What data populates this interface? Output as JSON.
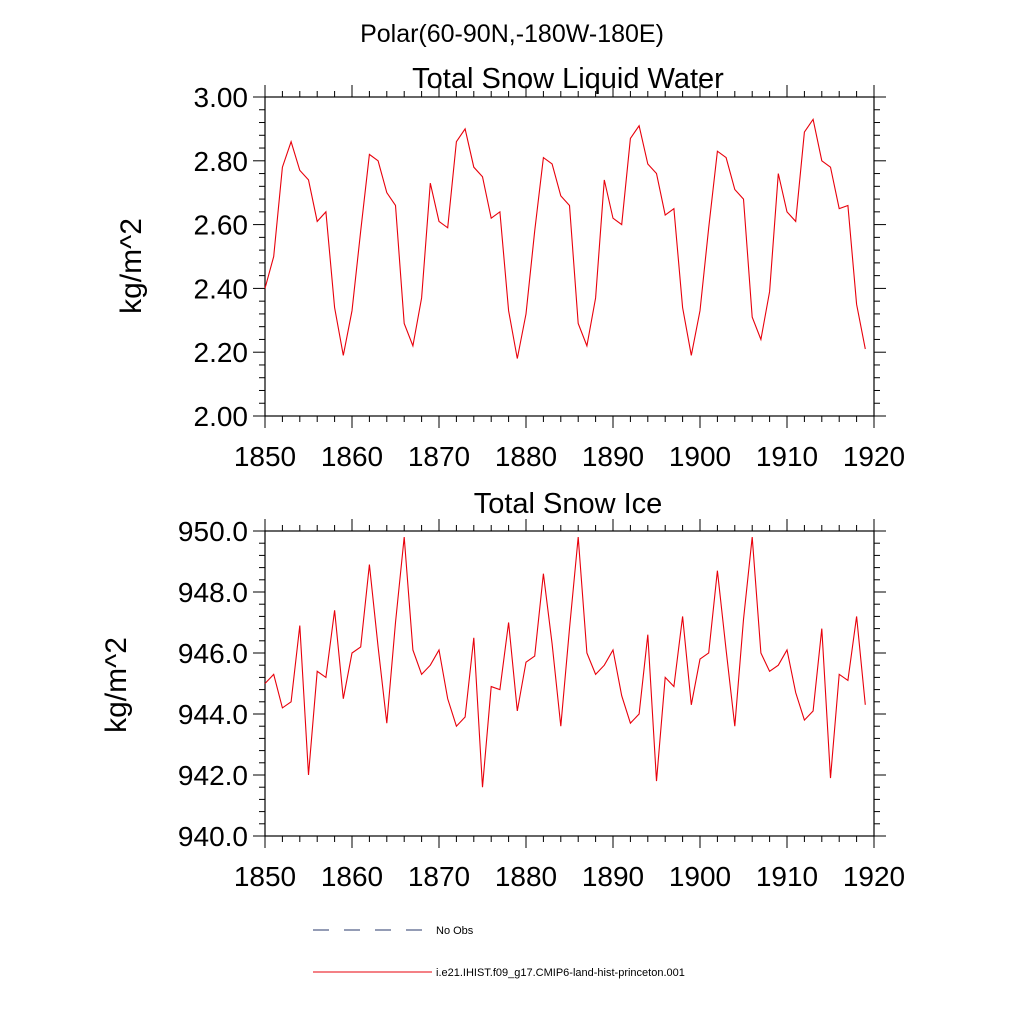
{
  "page_title": "Polar(60-90N,-180W-180E)",
  "legend": {
    "items": [
      {
        "label": "No Obs",
        "color": "#2a3a6b",
        "style": "dashed"
      },
      {
        "label": "i.e21.IHIST.f09_g17.CMIP6-land-hist-princeton.001",
        "color": "#e8000b",
        "style": "solid"
      }
    ]
  },
  "chart_data": [
    {
      "type": "line",
      "title": "Total Snow Liquid Water",
      "ylabel": "kg/m^2",
      "xlabel": "",
      "xlim": [
        1850,
        1920
      ],
      "ylim": [
        2.0,
        3.0
      ],
      "x_ticks": [
        1850,
        1860,
        1870,
        1880,
        1890,
        1900,
        1910,
        1920
      ],
      "y_ticks": [
        2.0,
        2.2,
        2.4,
        2.6,
        2.8,
        3.0
      ],
      "y_tick_labels": [
        "2.00",
        "2.20",
        "2.40",
        "2.60",
        "2.80",
        "3.00"
      ],
      "x_tick_labels": [
        "1850",
        "1860",
        "1870",
        "1880",
        "1890",
        "1900",
        "1910",
        "1920"
      ],
      "series": [
        {
          "name": "i.e21.IHIST.f09_g17.CMIP6-land-hist-princeton.001",
          "color": "#e8000b",
          "x": [
            1850,
            1851,
            1852,
            1853,
            1854,
            1855,
            1856,
            1857,
            1858,
            1859,
            1860,
            1861,
            1862,
            1863,
            1864,
            1865,
            1866,
            1867,
            1868,
            1869,
            1870,
            1871,
            1872,
            1873,
            1874,
            1875,
            1876,
            1877,
            1878,
            1879,
            1880,
            1881,
            1882,
            1883,
            1884,
            1885,
            1886,
            1887,
            1888,
            1889,
            1890,
            1891,
            1892,
            1893,
            1894,
            1895,
            1896,
            1897,
            1898,
            1899,
            1900,
            1901,
            1902,
            1903,
            1904,
            1905,
            1906,
            1907,
            1908,
            1909,
            1910,
            1911,
            1912,
            1913,
            1914,
            1915,
            1916,
            1917,
            1918,
            1919
          ],
          "values": [
            2.4,
            2.5,
            2.78,
            2.86,
            2.77,
            2.74,
            2.61,
            2.64,
            2.34,
            2.19,
            2.33,
            2.58,
            2.82,
            2.8,
            2.7,
            2.66,
            2.29,
            2.22,
            2.37,
            2.73,
            2.61,
            2.59,
            2.86,
            2.9,
            2.78,
            2.75,
            2.62,
            2.64,
            2.33,
            2.18,
            2.32,
            2.58,
            2.81,
            2.79,
            2.69,
            2.66,
            2.29,
            2.22,
            2.37,
            2.74,
            2.62,
            2.6,
            2.87,
            2.91,
            2.79,
            2.76,
            2.63,
            2.65,
            2.34,
            2.19,
            2.33,
            2.59,
            2.83,
            2.81,
            2.71,
            2.68,
            2.31,
            2.24,
            2.39,
            2.76,
            2.64,
            2.61,
            2.89,
            2.93,
            2.8,
            2.78,
            2.65,
            2.66,
            2.35,
            2.21
          ]
        }
      ]
    },
    {
      "type": "line",
      "title": "Total Snow Ice",
      "ylabel": "kg/m^2",
      "xlabel": "",
      "xlim": [
        1850,
        1920
      ],
      "ylim": [
        940.0,
        950.0
      ],
      "x_ticks": [
        1850,
        1860,
        1870,
        1880,
        1890,
        1900,
        1910,
        1920
      ],
      "y_ticks": [
        940.0,
        942.0,
        944.0,
        946.0,
        948.0,
        950.0
      ],
      "y_tick_labels": [
        "940.0",
        "942.0",
        "944.0",
        "946.0",
        "948.0",
        "950.0"
      ],
      "x_tick_labels": [
        "1850",
        "1860",
        "1870",
        "1880",
        "1890",
        "1900",
        "1910",
        "1920"
      ],
      "series": [
        {
          "name": "i.e21.IHIST.f09_g17.CMIP6-land-hist-princeton.001",
          "color": "#e8000b",
          "x": [
            1850,
            1851,
            1852,
            1853,
            1854,
            1855,
            1856,
            1857,
            1858,
            1859,
            1860,
            1861,
            1862,
            1863,
            1864,
            1865,
            1866,
            1867,
            1868,
            1869,
            1870,
            1871,
            1872,
            1873,
            1874,
            1875,
            1876,
            1877,
            1878,
            1879,
            1880,
            1881,
            1882,
            1883,
            1884,
            1885,
            1886,
            1887,
            1888,
            1889,
            1890,
            1891,
            1892,
            1893,
            1894,
            1895,
            1896,
            1897,
            1898,
            1899,
            1900,
            1901,
            1902,
            1903,
            1904,
            1905,
            1906,
            1907,
            1908,
            1909,
            1910,
            1911,
            1912,
            1913,
            1914,
            1915,
            1916,
            1917,
            1918,
            1919
          ],
          "values": [
            945.0,
            945.3,
            944.2,
            944.4,
            946.9,
            942.0,
            945.4,
            945.2,
            947.4,
            944.5,
            946.0,
            946.2,
            948.9,
            946.2,
            943.7,
            947.0,
            949.8,
            946.1,
            945.3,
            945.6,
            946.1,
            944.5,
            943.6,
            943.9,
            946.5,
            941.6,
            944.9,
            944.8,
            947.0,
            944.1,
            945.7,
            945.9,
            948.6,
            946.3,
            943.6,
            946.8,
            949.8,
            946.0,
            945.3,
            945.6,
            946.1,
            944.6,
            943.7,
            944.0,
            946.6,
            941.8,
            945.2,
            944.9,
            947.2,
            944.3,
            945.8,
            946.0,
            948.7,
            946.1,
            943.6,
            947.1,
            949.8,
            946.0,
            945.4,
            945.6,
            946.1,
            944.7,
            943.8,
            944.1,
            946.8,
            941.9,
            945.3,
            945.1,
            947.2,
            944.3
          ]
        }
      ]
    }
  ]
}
